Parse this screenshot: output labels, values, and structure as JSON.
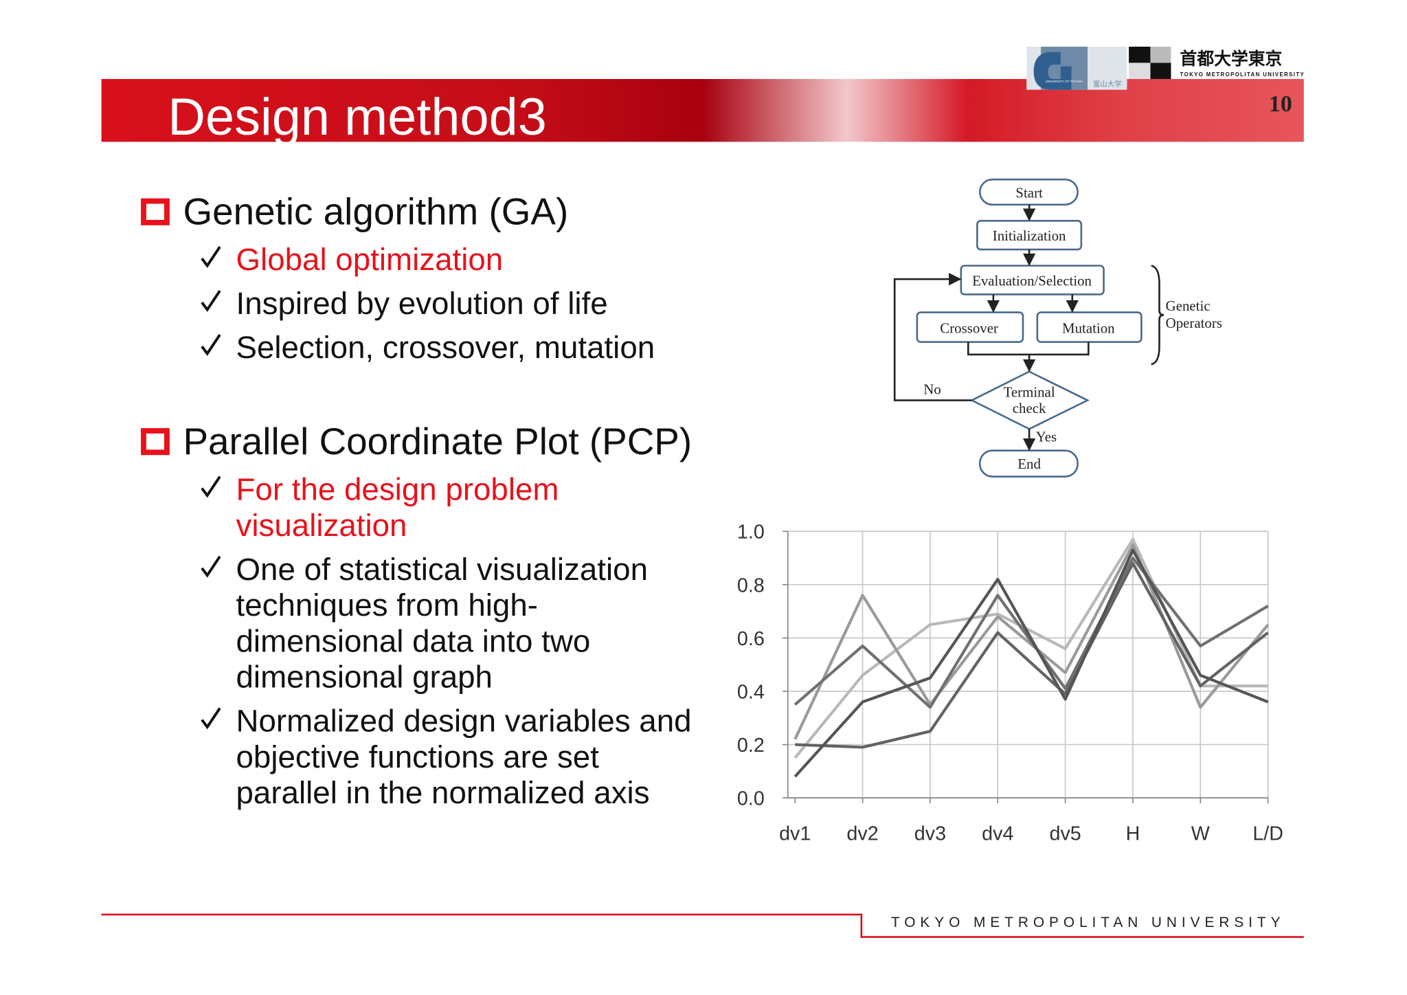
{
  "header": {
    "title": "Design method3",
    "page_number": "10",
    "logo_text": "首都大学東京",
    "logo_subtext": "TOKYO METROPOLITAN UNIVERSITY",
    "toyama_text": "UNIVERSITY OF TOYAMA",
    "toyama_kanji": "富山大学"
  },
  "sections": [
    {
      "heading": "Genetic algorithm (GA)",
      "items": [
        {
          "lines": [
            "Global optimization"
          ],
          "color": "#e8111b"
        },
        {
          "lines": [
            "Inspired by evolution of life"
          ],
          "color": "#111111"
        },
        {
          "lines": [
            "Selection, crossover, mutation"
          ],
          "color": "#111111"
        }
      ]
    },
    {
      "heading": "Parallel Coordinate Plot (PCP)",
      "items": [
        {
          "lines": [
            "For the design problem",
            "visualization"
          ],
          "color": "#e8111b"
        },
        {
          "lines": [
            "One of statistical visualization",
            "techniques from high-",
            "dimensional data into two",
            "dimensional graph"
          ],
          "color": "#111111"
        },
        {
          "lines": [
            "Normalized design variables and",
            "objective functions are set",
            "parallel in the normalized axis"
          ],
          "color": "#111111"
        }
      ]
    }
  ],
  "flowchart": {
    "nodes": {
      "start": "Start",
      "init": "Initialization",
      "eval": "Evaluation/Selection",
      "crossover": "Crossover",
      "mutation": "Mutation",
      "check_1": "Terminal",
      "check_2": "check",
      "end": "End"
    },
    "no": "No",
    "yes": "Yes",
    "group_1": "Genetic",
    "group_2": "Operators"
  },
  "chart_data": {
    "type": "line",
    "categories": [
      "dv1",
      "dv2",
      "dv3",
      "dv4",
      "dv5",
      "H",
      "W",
      "L/D"
    ],
    "ylim": [
      0,
      1
    ],
    "yticks": [
      {
        "value": 0,
        "label": "0.0"
      },
      {
        "value": 0.2,
        "label": "0.2"
      },
      {
        "value": 0.4,
        "label": "0.4"
      },
      {
        "value": 0.6,
        "label": "0.6"
      },
      {
        "value": 0.8,
        "label": "0.8"
      },
      {
        "value": 1,
        "label": "1.0"
      }
    ],
    "grid": true,
    "series": [
      {
        "color": "#b8b8b8",
        "values": [
          0.15,
          0.46,
          0.65,
          0.69,
          0.56,
          0.97,
          0.42,
          0.42
        ]
      },
      {
        "color": "#9a9a9a",
        "values": [
          0.22,
          0.76,
          0.35,
          0.68,
          0.47,
          0.95,
          0.34,
          0.65
        ]
      },
      {
        "color": "#636363",
        "values": [
          0.2,
          0.19,
          0.25,
          0.62,
          0.39,
          0.88,
          0.42,
          0.62
        ]
      },
      {
        "color": "#707070",
        "values": [
          0.35,
          0.57,
          0.34,
          0.76,
          0.41,
          0.9,
          0.57,
          0.72
        ]
      },
      {
        "color": "#555555",
        "values": [
          0.08,
          0.36,
          0.45,
          0.82,
          0.37,
          0.93,
          0.46,
          0.36
        ]
      }
    ]
  },
  "footer": {
    "text": "TOKYO METROPOLITAN UNIVERSITY"
  }
}
